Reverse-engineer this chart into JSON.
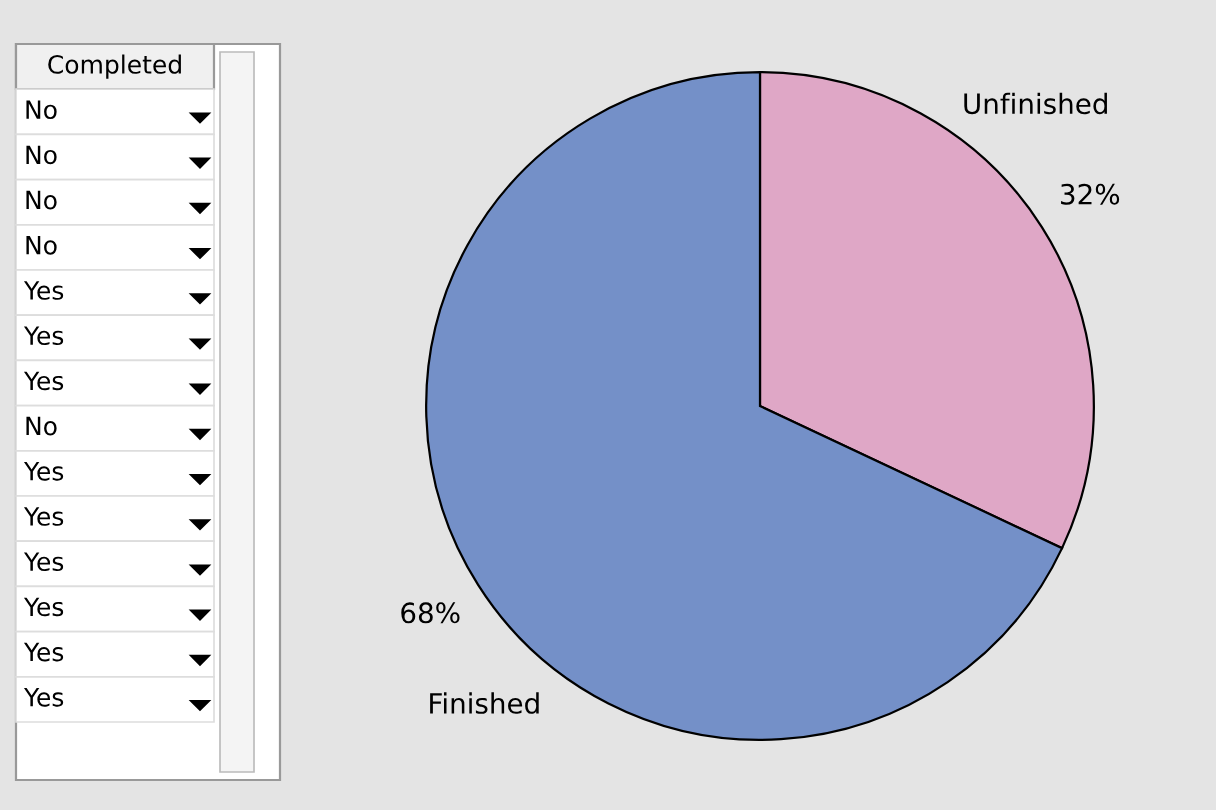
{
  "chart_data": {
    "type": "pie",
    "categories": [
      "Unfinished",
      "Finished"
    ],
    "values": [
      32,
      68
    ],
    "colors": [
      "#dfa7c6",
      "#7490c8"
    ],
    "value_labels": [
      "32%",
      "68%"
    ],
    "annotations": [
      "Completed",
      "No",
      "No",
      "No",
      "No",
      "Yes",
      "Yes",
      "Yes",
      "No",
      "Yes",
      "Yes",
      "Yes",
      "Yes",
      "Yes",
      "Yes"
    ]
  }
}
